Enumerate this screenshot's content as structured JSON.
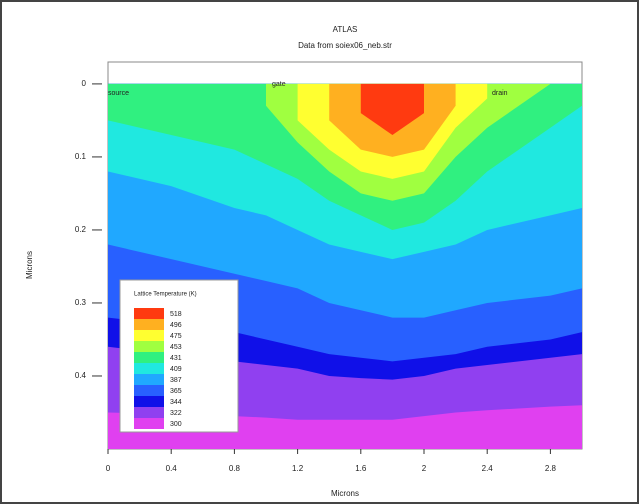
{
  "chart_data": {
    "type": "contour",
    "title": "ATLAS",
    "subtitle": "Data from soiex06_neb.str",
    "xlabel": "Microns",
    "ylabel": "Microns",
    "annotations": [
      "source",
      "gate",
      "drain"
    ],
    "legend_title": "Lattice Temperature (K)",
    "xlim": [
      0,
      3
    ],
    "xticks": [
      0,
      0.4,
      0.8,
      1.2,
      1.6,
      2,
      2.4,
      2.8
    ],
    "ylim": [
      -0.03,
      0.5
    ],
    "yticks": [
      0,
      0.1,
      0.2,
      0.3,
      0.4
    ],
    "y_inverted": true,
    "x": [
      0,
      0.4,
      0.8,
      1.0,
      1.2,
      1.4,
      1.6,
      1.8,
      2.0,
      2.2,
      2.4,
      2.8,
      3.0
    ],
    "series": [
      {
        "name": 518,
        "color": "#ff3a10",
        "values": [
          null,
          null,
          null,
          null,
          null,
          null,
          0.04,
          0.07,
          0.04,
          null,
          null,
          null,
          null
        ]
      },
      {
        "name": 496,
        "color": "#ffb020",
        "values": [
          null,
          null,
          null,
          null,
          null,
          0.05,
          0.09,
          0.1,
          0.09,
          0.03,
          null,
          null,
          null
        ]
      },
      {
        "name": 475,
        "color": "#ffff30",
        "values": [
          null,
          null,
          null,
          null,
          0.05,
          0.09,
          0.12,
          0.13,
          0.12,
          0.06,
          0.02,
          null,
          null
        ]
      },
      {
        "name": 453,
        "color": "#a0ff40",
        "values": [
          null,
          null,
          null,
          0.03,
          0.08,
          0.12,
          0.15,
          0.16,
          0.15,
          0.1,
          0.06,
          0.0,
          null
        ]
      },
      {
        "name": 431,
        "color": "#30f080",
        "values": [
          0.05,
          0.07,
          0.09,
          0.11,
          0.13,
          0.16,
          0.18,
          0.2,
          0.19,
          0.16,
          0.12,
          0.06,
          0.03
        ]
      },
      {
        "name": 409,
        "color": "#20e8e0",
        "values": [
          0.12,
          0.14,
          0.17,
          0.18,
          0.2,
          0.22,
          0.23,
          0.24,
          0.23,
          0.22,
          0.2,
          0.18,
          0.17
        ]
      },
      {
        "name": 387,
        "color": "#20a8ff",
        "values": [
          0.22,
          0.24,
          0.26,
          0.27,
          0.28,
          0.3,
          0.31,
          0.32,
          0.32,
          0.31,
          0.3,
          0.29,
          0.28
        ]
      },
      {
        "name": 365,
        "color": "#2860ff",
        "values": [
          0.32,
          0.33,
          0.34,
          0.35,
          0.36,
          0.37,
          0.375,
          0.38,
          0.375,
          0.37,
          0.36,
          0.35,
          0.34
        ]
      },
      {
        "name": 344,
        "color": "#1010e8",
        "values": [
          0.36,
          0.37,
          0.38,
          0.385,
          0.39,
          0.4,
          0.403,
          0.405,
          0.4,
          0.39,
          0.385,
          0.375,
          0.37
        ]
      },
      {
        "name": 322,
        "color": "#9040f0",
        "values": [
          0.45,
          0.452,
          0.455,
          0.457,
          0.46,
          0.46,
          0.46,
          0.46,
          0.455,
          0.45,
          0.447,
          0.442,
          0.44
        ]
      },
      {
        "name": 300,
        "color": "#e040f0",
        "values": [
          0.5,
          0.5,
          0.5,
          0.5,
          0.5,
          0.5,
          0.5,
          0.5,
          0.5,
          0.5,
          0.5,
          0.5,
          0.5
        ]
      }
    ]
  }
}
